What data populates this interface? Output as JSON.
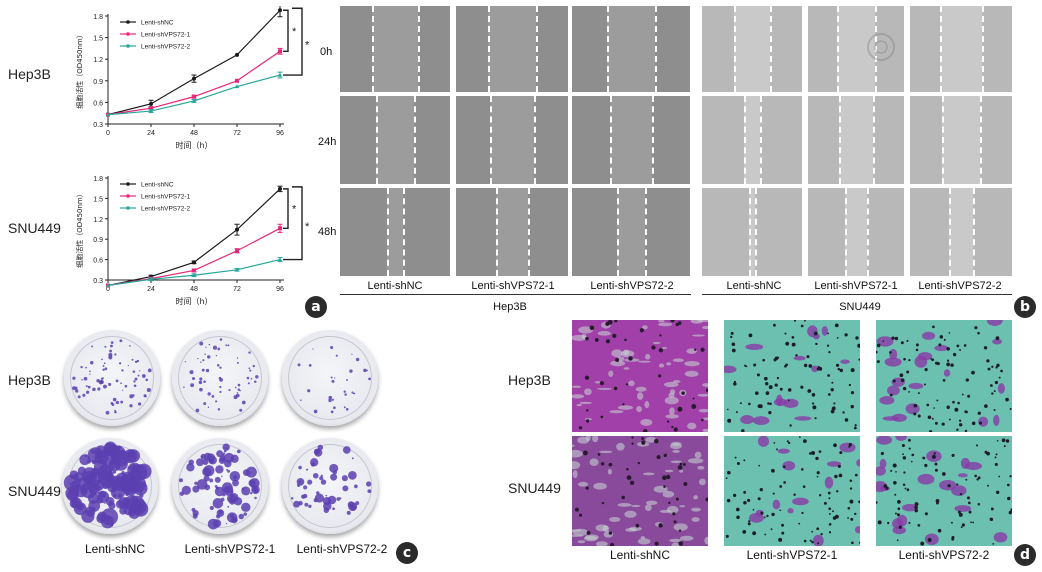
{
  "panel_a": {
    "badge": "a",
    "row_labels": [
      "Hep3B",
      "SNU449"
    ],
    "ylabel": "细胞活性（OD450nm）",
    "xlabel": "时间（h）",
    "sig_marks": [
      "*",
      "*"
    ]
  },
  "chart_data": [
    {
      "type": "line",
      "x": [
        0,
        24,
        48,
        72,
        96
      ],
      "xlim": [
        0,
        96
      ],
      "xticks": [
        0,
        24,
        48,
        72,
        96
      ],
      "ylim": [
        0.3,
        1.8
      ],
      "yticks": [
        "0.3",
        "0.6",
        "0.9",
        "1.2",
        "1.5",
        "1.8"
      ],
      "xlabel": "时间（h）",
      "ylabel": "细胞活性（OD450nm）",
      "legend": "top-left",
      "series": [
        {
          "name": "Lenti-shNC",
          "color": "#1a1a1a",
          "values": [
            0.43,
            0.58,
            0.93,
            1.26,
            1.88
          ],
          "err": [
            0,
            0.05,
            0.05,
            0,
            0.09
          ]
        },
        {
          "name": "Lenti-shVPS72-1",
          "color": "#e8267a",
          "values": [
            0.43,
            0.52,
            0.68,
            0.9,
            1.31
          ],
          "err": [
            0,
            0.02,
            0.02,
            0,
            0.04
          ]
        },
        {
          "name": "Lenti-shVPS72-2",
          "color": "#26a69a",
          "values": [
            0.43,
            0.48,
            0.62,
            0.82,
            0.98
          ],
          "err": [
            0,
            0.02,
            0.02,
            0,
            0.04
          ]
        }
      ]
    },
    {
      "type": "line",
      "x": [
        0,
        24,
        48,
        72,
        96
      ],
      "xlim": [
        0,
        96
      ],
      "xticks": [
        0,
        24,
        48,
        72,
        96
      ],
      "ylim": [
        0.3,
        1.8
      ],
      "yticks": [
        "0.3",
        "0.6",
        "0.9",
        "1.2",
        "1.5",
        "1.8"
      ],
      "xlabel": "时间（h）",
      "ylabel": "细胞活性（OD450nm）",
      "legend": "top-left",
      "series": [
        {
          "name": "Lenti-shNC",
          "color": "#1a1a1a",
          "values": [
            0.22,
            0.35,
            0.56,
            1.04,
            1.64
          ],
          "err": [
            0,
            0.02,
            0.02,
            0.08,
            0.04
          ]
        },
        {
          "name": "Lenti-shVPS72-1",
          "color": "#e8267a",
          "values": [
            0.22,
            0.32,
            0.44,
            0.73,
            1.06
          ],
          "err": [
            0,
            0.02,
            0.02,
            0.03,
            0.06
          ]
        },
        {
          "name": "Lenti-shVPS72-2",
          "color": "#26a69a",
          "values": [
            0.22,
            0.31,
            0.37,
            0.45,
            0.6
          ],
          "err": [
            0,
            0.02,
            0.02,
            0.02,
            0.03
          ]
        }
      ]
    }
  ],
  "panel_b": {
    "badge": "b",
    "time_labels": [
      "0h",
      "24h",
      "48h"
    ],
    "hep3b": {
      "group": "Hep3B",
      "columns": [
        "Lenti-shNC",
        "Lenti-shVPS72-1",
        "Lenti-shVPS72-2"
      ]
    },
    "snu449": {
      "group": "SNU449",
      "columns": [
        "Lenti-shNC",
        "Lenti-shVPS72-1",
        "Lenti-shVPS72-2"
      ]
    },
    "watermark": "中華醫學會"
  },
  "panel_c": {
    "badge": "c",
    "row_labels": [
      "Hep3B",
      "SNU449"
    ],
    "columns": [
      "Lenti-shNC",
      "Lenti-shVPS72-1",
      "Lenti-shVPS72-2"
    ]
  },
  "panel_d": {
    "badge": "d",
    "row_labels": [
      "Hep3B",
      "SNU449"
    ],
    "columns": [
      "Lenti-shNC",
      "Lenti-shVPS72-1",
      "Lenti-shVPS72-2"
    ]
  },
  "colors": {
    "shNC": "#1a1a1a",
    "shVPS72_1": "#e8267a",
    "shVPS72_2": "#26a69a",
    "crystal_violet": "#5a3fb0",
    "transwell_bg": "#6cc0b0",
    "transwell_stain": "#8a3aa8"
  }
}
